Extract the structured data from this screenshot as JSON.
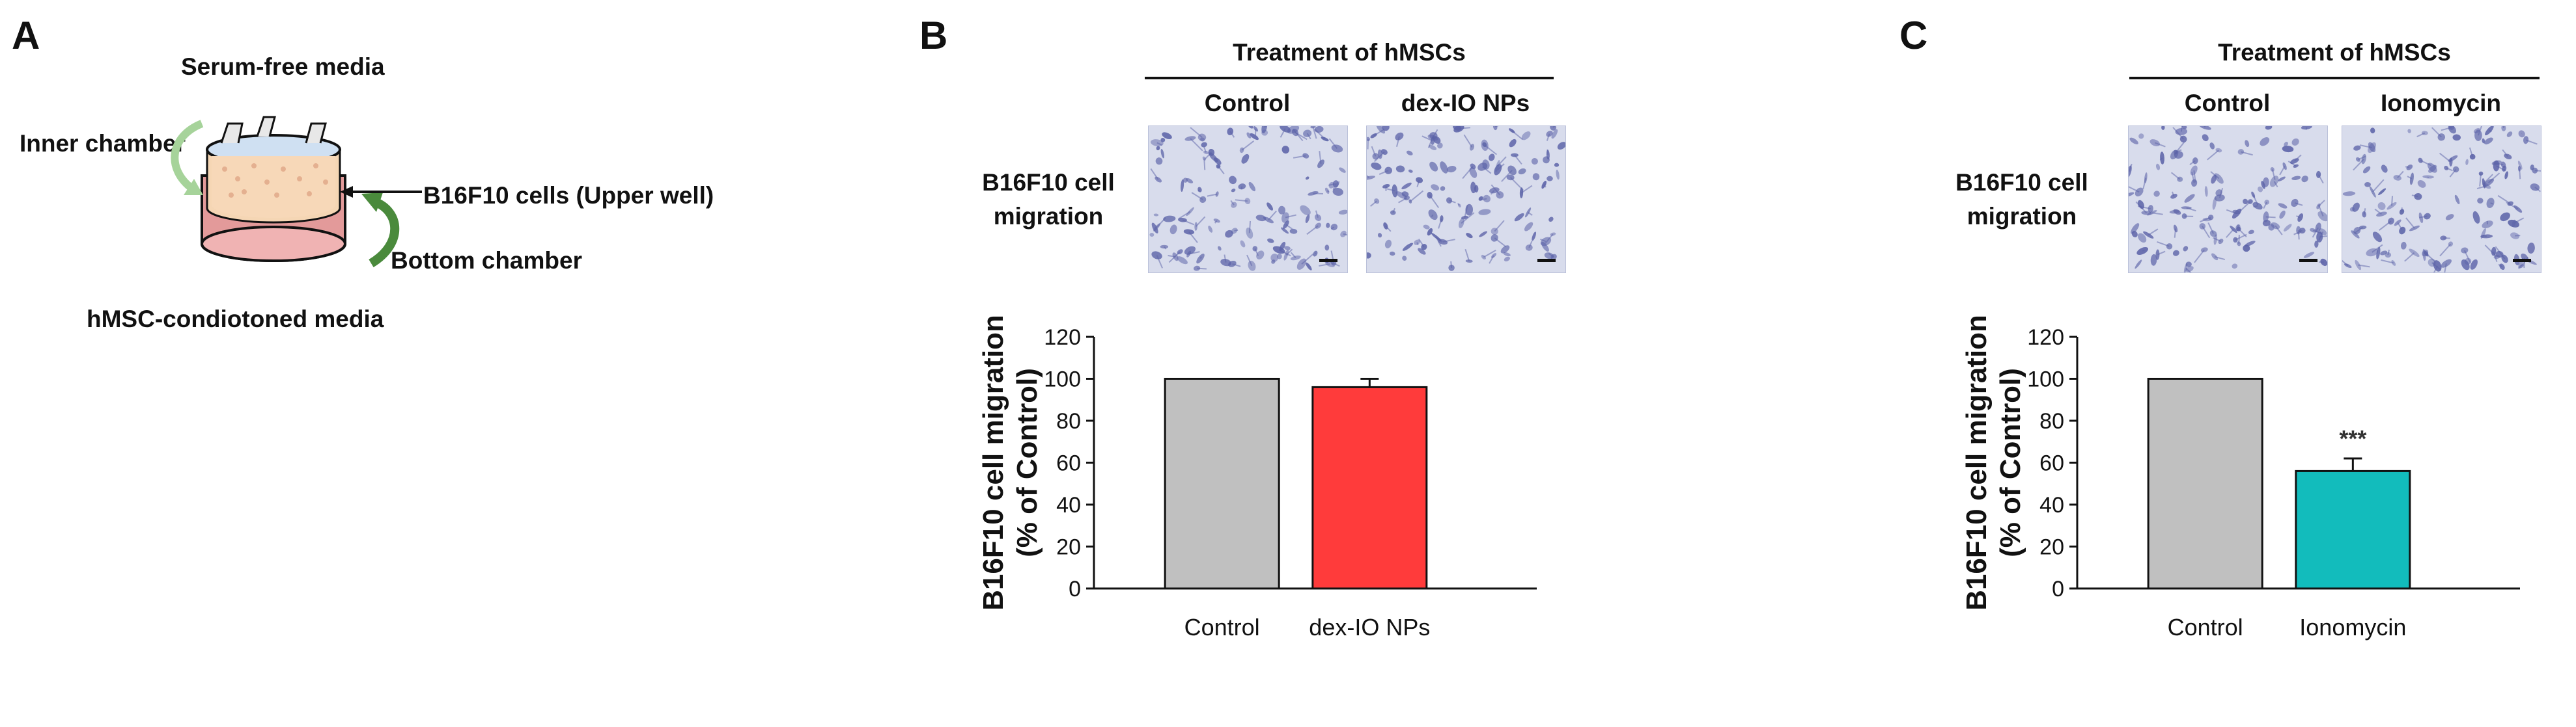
{
  "panel_labels": {
    "a": "A",
    "b": "B",
    "c": "C"
  },
  "panel_a": {
    "serum_free": "Serum-free media",
    "inner_chamber": "Inner chamber",
    "b16f10_cells": "B16F10 cells (Upper well)",
    "bottom_chamber": "Bottom chamber",
    "conditioned_media": "hMSC-condiotoned  media"
  },
  "panel_b": {
    "treatment_header": "Treatment of hMSCs",
    "col1": "Control",
    "col2": "dex-IO NPs",
    "row_label_line1": "B16F10 cell",
    "row_label_line2": "migration"
  },
  "panel_c": {
    "treatment_header": "Treatment of hMSCs",
    "col1": "Control",
    "col2": "Ionomycin",
    "row_label_line1": "B16F10 cell",
    "row_label_line2": "migration"
  },
  "colors": {
    "control_bar": "#c0c0c0",
    "dex_bar": "#ff3b3b",
    "ionomycin_bar": "#12bcbc",
    "micrograph_bg": "#d8dcec",
    "cell_stain": "#5c63a8"
  },
  "chart_data": [
    {
      "type": "bar",
      "categories": [
        "Control",
        "dex-IO NPs"
      ],
      "values": [
        100,
        96
      ],
      "errors": [
        0,
        4
      ],
      "colors": [
        "#c0c0c0",
        "#ff3b3b"
      ],
      "annotations": [
        "",
        ""
      ],
      "ylabel_line1": "B16F10 cell migration",
      "ylabel_line2": "(% of Control)",
      "ylim": [
        0,
        120
      ],
      "yticks": [
        "0",
        "20",
        "40",
        "60",
        "80",
        "100",
        "120"
      ]
    },
    {
      "type": "bar",
      "categories": [
        "Control",
        "Ionomycin"
      ],
      "values": [
        100,
        56
      ],
      "errors": [
        0,
        6
      ],
      "colors": [
        "#c0c0c0",
        "#12bcbc"
      ],
      "annotations": [
        "",
        "***"
      ],
      "ylabel_line1": "B16F10 cell migration",
      "ylabel_line2": "(% of Control)",
      "ylim": [
        0,
        120
      ],
      "yticks": [
        "0",
        "20",
        "40",
        "60",
        "80",
        "100",
        "120"
      ]
    }
  ]
}
